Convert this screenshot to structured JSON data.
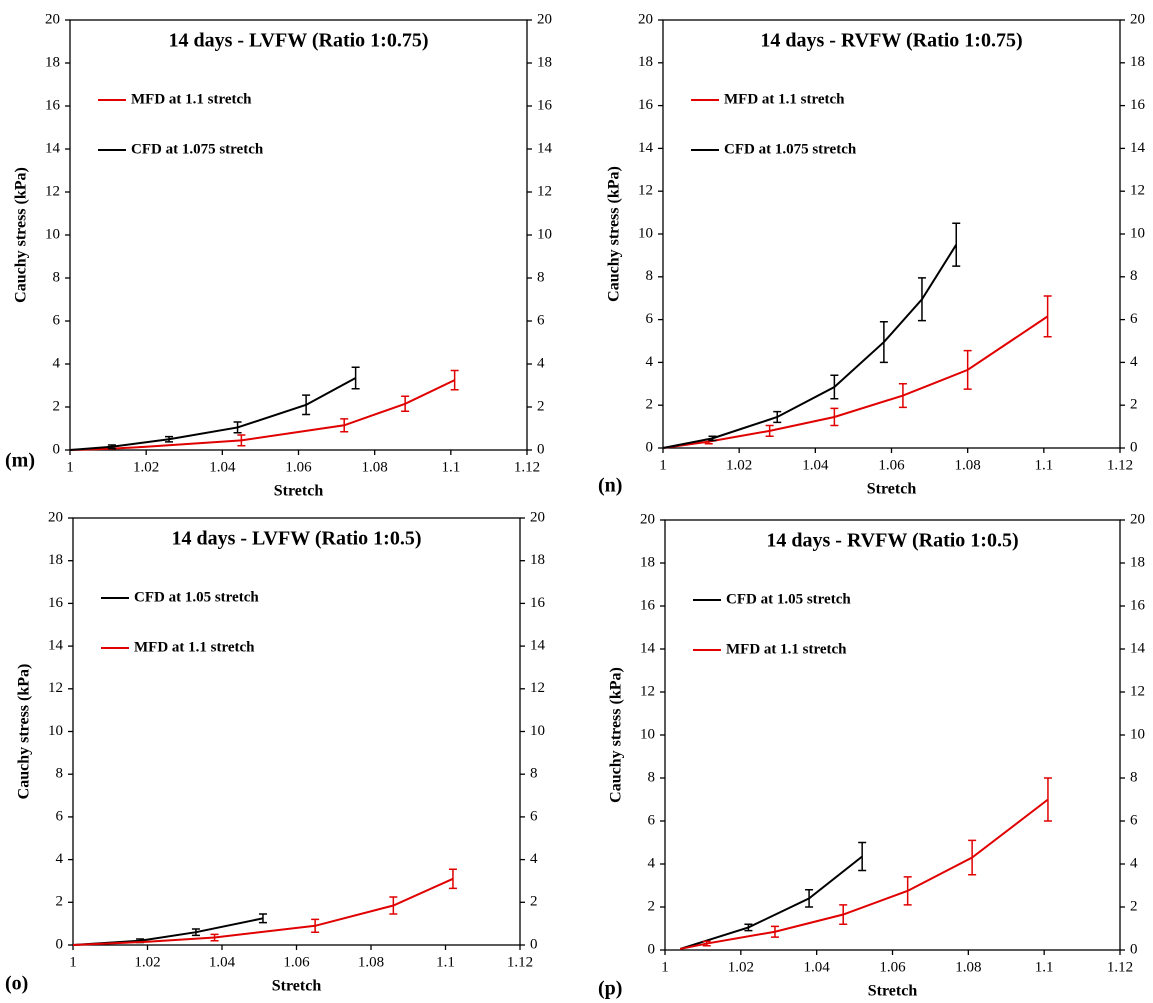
{
  "chart_data": [
    {
      "type": "line",
      "title": "14 days - LVFW (Ratio 1:0.75)",
      "panel_label": "(m)",
      "label_color": "#e00000",
      "x_label": "Stretch",
      "y_label": "Cauchy stress (kPa)",
      "xlim": [
        1,
        1.12
      ],
      "xticks": [
        1,
        1.02,
        1.04,
        1.06,
        1.08,
        1.1,
        1.12
      ],
      "ylim": [
        0,
        20
      ],
      "yticks": [
        0,
        2,
        4,
        6,
        8,
        10,
        12,
        14,
        16,
        18,
        20
      ],
      "y2lim": [
        0,
        20
      ],
      "y2ticks": [
        0,
        2,
        4,
        6,
        8,
        10,
        12,
        14,
        16,
        18,
        20
      ],
      "legend": "upper left",
      "grid": false,
      "series": [
        {
          "name": "MFD at 1.1 stretch",
          "color": "#e00000",
          "x": [
            1,
            1.01,
            1.02,
            1.045,
            1.072,
            1.088,
            1.101
          ],
          "values": [
            0,
            0.05,
            0.15,
            0.45,
            1.15,
            2.15,
            3.25
          ],
          "errors": [
            null,
            null,
            null,
            0.25,
            0.3,
            0.35,
            0.45
          ]
        },
        {
          "name": "CFD at 1.075 stretch",
          "color": "#000000",
          "x": [
            1,
            1.011,
            1.026,
            1.044,
            1.062,
            1.075
          ],
          "values": [
            0,
            0.15,
            0.5,
            1.05,
            2.1,
            3.35
          ],
          "errors": [
            null,
            0.08,
            0.12,
            0.25,
            0.45,
            0.5
          ]
        }
      ]
    },
    {
      "type": "line",
      "title": "14 days - RVFW (Ratio 1:0.75)",
      "panel_label": "(n)",
      "label_color": "#e00000",
      "x_label": "Stretch",
      "y_label": "Cauchy stress (kPa)",
      "xlim": [
        1,
        1.12
      ],
      "xticks": [
        1,
        1.02,
        1.04,
        1.06,
        1.08,
        1.1,
        1.12
      ],
      "ylim": [
        0,
        20
      ],
      "yticks": [
        0,
        2,
        4,
        6,
        8,
        10,
        12,
        14,
        16,
        18,
        20
      ],
      "y2lim": [
        0,
        20
      ],
      "y2ticks": [
        0,
        2,
        4,
        6,
        8,
        10,
        12,
        14,
        16,
        18,
        20
      ],
      "legend": "upper left",
      "grid": false,
      "series": [
        {
          "name": "MFD at 1.1 stretch",
          "color": "#e00000",
          "x": [
            1,
            1.012,
            1.028,
            1.045,
            1.063,
            1.08,
            1.101
          ],
          "values": [
            0,
            0.3,
            0.8,
            1.45,
            2.45,
            3.65,
            6.15
          ],
          "errors": [
            null,
            0.1,
            0.25,
            0.4,
            0.55,
            0.9,
            0.95
          ]
        },
        {
          "name": "CFD at 1.075 stretch",
          "color": "#000000",
          "x": [
            1,
            1.013,
            1.03,
            1.045,
            1.058,
            1.068,
            1.077
          ],
          "values": [
            0,
            0.45,
            1.45,
            2.85,
            4.95,
            6.95,
            9.5
          ],
          "errors": [
            null,
            0.1,
            0.25,
            0.55,
            0.95,
            1,
            1
          ]
        }
      ]
    },
    {
      "type": "line",
      "title": "14 days - LVFW (Ratio 1:0.5)",
      "panel_label": "(o)",
      "label_color": "#e00000",
      "x_label": "Stretch",
      "y_label": "Cauchy stress (kPa)",
      "xlim": [
        1,
        1.12
      ],
      "xticks": [
        1,
        1.02,
        1.04,
        1.06,
        1.08,
        1.1,
        1.12
      ],
      "ylim": [
        0,
        20
      ],
      "yticks": [
        0,
        2,
        4,
        6,
        8,
        10,
        12,
        14,
        16,
        18,
        20
      ],
      "y2lim": [
        0,
        20
      ],
      "y2ticks": [
        0,
        2,
        4,
        6,
        8,
        10,
        12,
        14,
        16,
        18,
        20
      ],
      "legend": "upper left",
      "grid": false,
      "series": [
        {
          "name": "CFD at 1.05 stretch",
          "color": "#000000",
          "x": [
            1,
            1.018,
            1.033,
            1.051
          ],
          "values": [
            0,
            0.2,
            0.6,
            1.25
          ],
          "errors": [
            null,
            0.08,
            0.15,
            0.2
          ]
        },
        {
          "name": "MFD at 1.1 stretch",
          "color": "#e00000",
          "x": [
            1,
            1.02,
            1.038,
            1.065,
            1.086,
            1.102
          ],
          "values": [
            0,
            0.15,
            0.35,
            0.9,
            1.85,
            3.1
          ],
          "errors": [
            null,
            null,
            0.15,
            0.3,
            0.4,
            0.45
          ]
        }
      ]
    },
    {
      "type": "line",
      "title": "14 days - RVFW (Ratio 1:0.5)",
      "panel_label": "(p)",
      "label_color": "#e00000",
      "x_label": "Stretch",
      "y_label": "Cauchy stress (kPa)",
      "xlim": [
        1,
        1.12
      ],
      "xticks": [
        1,
        1.02,
        1.04,
        1.06,
        1.08,
        1.1,
        1.12
      ],
      "ylim": [
        0,
        20
      ],
      "yticks": [
        0,
        2,
        4,
        6,
        8,
        10,
        12,
        14,
        16,
        18,
        20
      ],
      "y2lim": [
        0,
        20
      ],
      "y2ticks": [
        0,
        2,
        4,
        6,
        8,
        10,
        12,
        14,
        16,
        18,
        20
      ],
      "legend": "upper left",
      "grid": false,
      "series": [
        {
          "name": "CFD at 1.05 stretch",
          "color": "#000000",
          "x": [
            1.004,
            1.022,
            1.038,
            1.052
          ],
          "values": [
            0.05,
            1.05,
            2.4,
            4.35
          ],
          "errors": [
            null,
            0.15,
            0.4,
            0.65
          ]
        },
        {
          "name": "MFD at 1.1 stretch",
          "color": "#e00000",
          "x": [
            1.004,
            1.011,
            1.029,
            1.047,
            1.064,
            1.081,
            1.101
          ],
          "values": [
            0.05,
            0.3,
            0.85,
            1.65,
            2.75,
            4.3,
            7
          ],
          "errors": [
            null,
            0.1,
            0.25,
            0.45,
            0.65,
            0.8,
            1
          ]
        }
      ]
    }
  ]
}
